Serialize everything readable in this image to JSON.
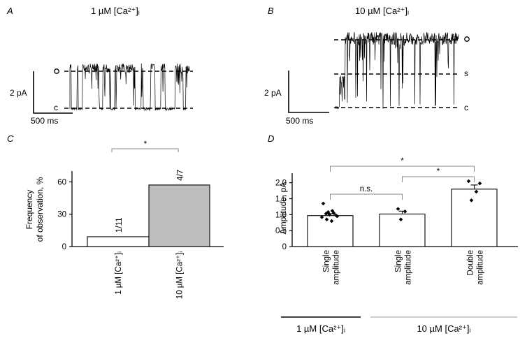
{
  "panels": {
    "a": {
      "letter": "A",
      "condition": "1 µM [Ca²⁺]ᵢ",
      "level_open": "o",
      "level_closed": "c",
      "scale_y": "2 pA",
      "scale_x": "500 ms"
    },
    "b": {
      "letter": "B",
      "condition": "10 µM [Ca²⁺]ᵢ",
      "level_open": "o",
      "level_sub": "s",
      "level_closed": "c",
      "scale_y": "2 pA",
      "scale_x": "500 ms"
    },
    "c": {
      "letter": "C"
    },
    "d": {
      "letter": "D"
    }
  },
  "groups": {
    "g1": "1 µM [Ca²⁺]ᵢ",
    "g2": "10 µM [Ca²⁺]ᵢ"
  },
  "chart_data": [
    {
      "id": "C",
      "type": "bar",
      "ylabel_line1": "Frequency",
      "ylabel_line2": "of observation, %",
      "categories": [
        "1 µM [Ca²⁺]ᵢ",
        "10 µM [Ca²⁺]ᵢ"
      ],
      "values": [
        9.1,
        57.1
      ],
      "bar_labels": [
        "1/11",
        "4/7"
      ],
      "bar_colors": [
        "#ffffff",
        "#bdbdbd"
      ],
      "ylim": [
        0,
        70
      ],
      "yticks": [
        0,
        30,
        60
      ],
      "significance": "*"
    },
    {
      "id": "D",
      "type": "bar",
      "ylabel": "Amplitude, pA",
      "categories": [
        "Single amplitude",
        "Single amplitude",
        "Double amplitude"
      ],
      "category_lines": [
        [
          "Single",
          "amplitude"
        ],
        [
          "Single",
          "amplitude"
        ],
        [
          "Double",
          "amplitude"
        ]
      ],
      "values": [
        0.97,
        1.02,
        1.8
      ],
      "errors": [
        0.06,
        0.09,
        0.13
      ],
      "points": [
        [
          1.35,
          1.12,
          1.08,
          1.05,
          1.03,
          0.98,
          0.92,
          0.85,
          0.8,
          0.95,
          1.0
        ],
        [
          1.18,
          1.1,
          0.85
        ],
        [
          2.05,
          1.98,
          1.72,
          1.45
        ]
      ],
      "ylim": [
        0,
        2.3
      ],
      "yticks": [
        "0",
        "0.5",
        "1.0",
        "1.5",
        "2.0"
      ],
      "comparisons": [
        "n.s.",
        "*",
        "*"
      ]
    }
  ]
}
